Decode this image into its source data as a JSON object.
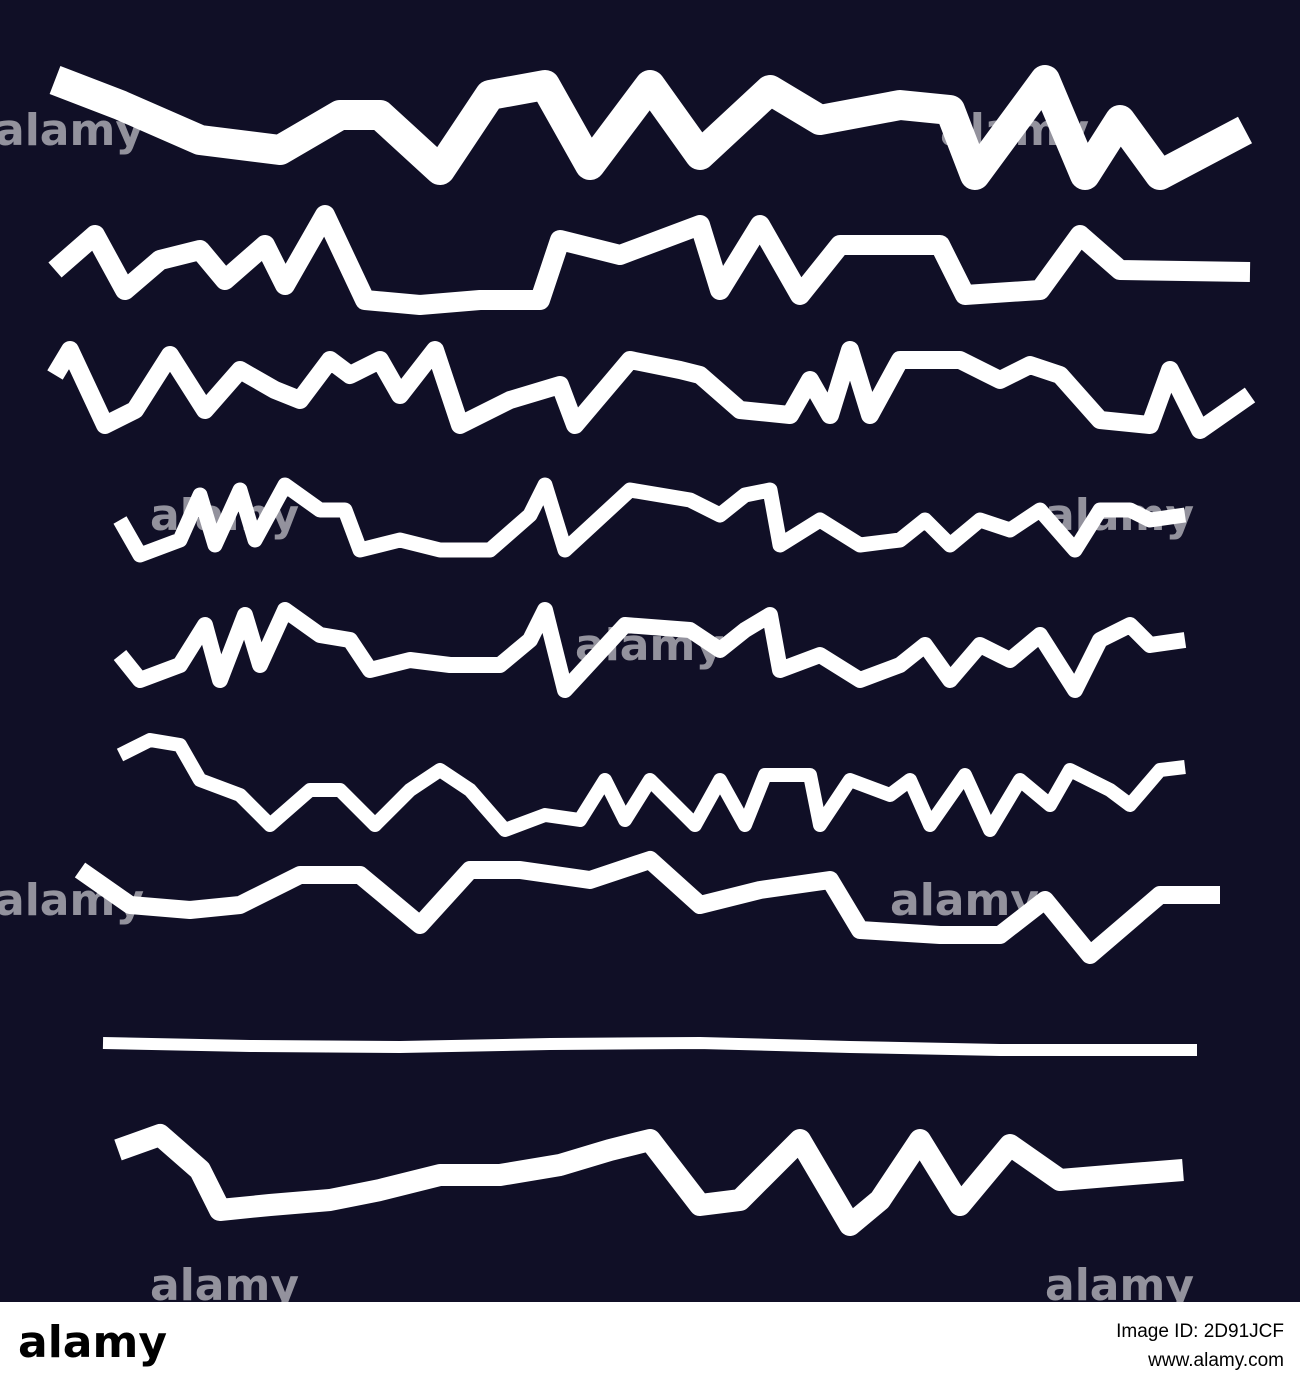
{
  "watermark": "alamy",
  "footer": {
    "logo": "alamy",
    "image_id": "Image ID: 2D91JCF",
    "url": "www.alamy.com"
  }
}
